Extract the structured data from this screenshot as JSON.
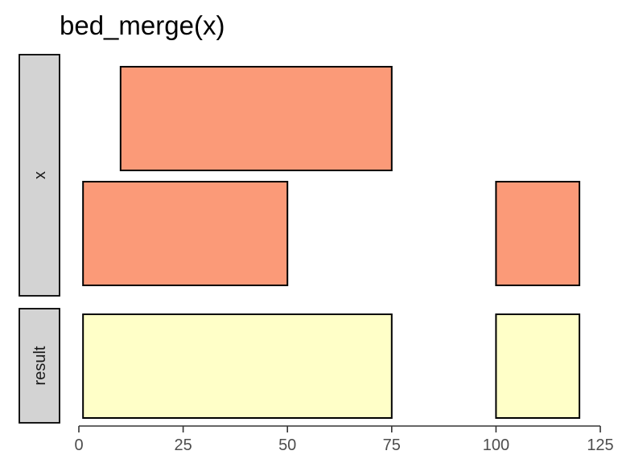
{
  "chart_data": {
    "type": "bar",
    "title": "bed_merge(x)",
    "xlim": [
      0,
      125
    ],
    "x_ticks": [
      0,
      25,
      50,
      75,
      100,
      125
    ],
    "x_tick_labels": [
      "0",
      "25",
      "50",
      "75",
      "100",
      "125"
    ],
    "facets": [
      {
        "label": "x",
        "rows": 2,
        "fill": "#fb9a78",
        "intervals": [
          {
            "start": 10,
            "end": 75,
            "row": 0
          },
          {
            "start": 1,
            "end": 50,
            "row": 1
          },
          {
            "start": 100,
            "end": 120,
            "row": 1
          }
        ]
      },
      {
        "label": "result",
        "rows": 1,
        "fill": "#ffffc8",
        "intervals": [
          {
            "start": 1,
            "end": 75,
            "row": 0
          },
          {
            "start": 100,
            "end": 120,
            "row": 0
          }
        ]
      }
    ],
    "grid": false,
    "legend": "none"
  },
  "colors": {
    "strip_fill": "#d3d3d3",
    "x_interval_fill": "#fb9a78",
    "result_interval_fill": "#ffffc8"
  }
}
